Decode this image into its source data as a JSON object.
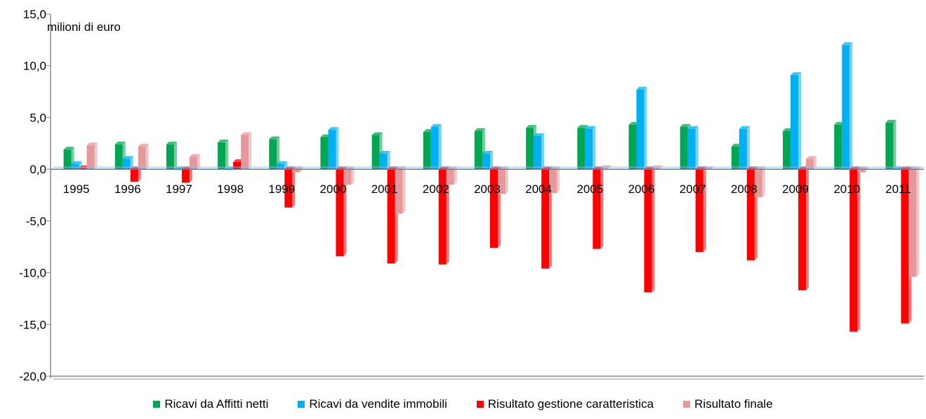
{
  "chart_data": {
    "type": "bar",
    "unit_label": "milioni di euro",
    "categories": [
      "1995",
      "1996",
      "1997",
      "1998",
      "1999",
      "2000",
      "2001",
      "2002",
      "2003",
      "2004",
      "2005",
      "2006",
      "2007",
      "2008",
      "2009",
      "2010",
      "2011"
    ],
    "series": [
      {
        "name": "Ricavi da Affitti netti",
        "color": "#00a651",
        "values": [
          1.9,
          2.4,
          2.4,
          2.6,
          2.9,
          3.1,
          3.3,
          3.6,
          3.7,
          4.0,
          4.0,
          4.3,
          4.1,
          2.2,
          3.7,
          4.3,
          4.5
        ]
      },
      {
        "name": "Ricavi da vendite immobili",
        "color": "#00b0f0",
        "values": [
          0.5,
          1.0,
          0.0,
          0.0,
          0.5,
          3.8,
          1.5,
          4.1,
          1.5,
          3.2,
          3.9,
          7.7,
          3.9,
          3.9,
          9.1,
          12.0,
          0.0
        ]
      },
      {
        "name": "Risultato gestione caratteristica",
        "color": "#ff0000",
        "values": [
          0.1,
          -1.2,
          -1.3,
          0.7,
          -3.7,
          -8.4,
          -9.1,
          -9.2,
          -7.6,
          -9.6,
          -7.7,
          -11.9,
          -8.0,
          -8.8,
          -11.7,
          -15.7,
          -14.9
        ]
      },
      {
        "name": "Risultato finale",
        "color": "#e6999b",
        "values": [
          2.3,
          2.2,
          1.2,
          3.3,
          -0.3,
          -1.5,
          -4.3,
          -1.5,
          -2.4,
          -2.3,
          0.1,
          0.1,
          0.0,
          -2.7,
          1.0,
          -0.3,
          -10.4
        ]
      }
    ],
    "yticks": [
      "15,0",
      "10,0",
      "5,0",
      "0,0",
      "-5,0",
      "-10,0",
      "-15,0",
      "-20,0"
    ],
    "ylim": [
      -20,
      15
    ],
    "legend_position": "bottom",
    "grid": false
  }
}
